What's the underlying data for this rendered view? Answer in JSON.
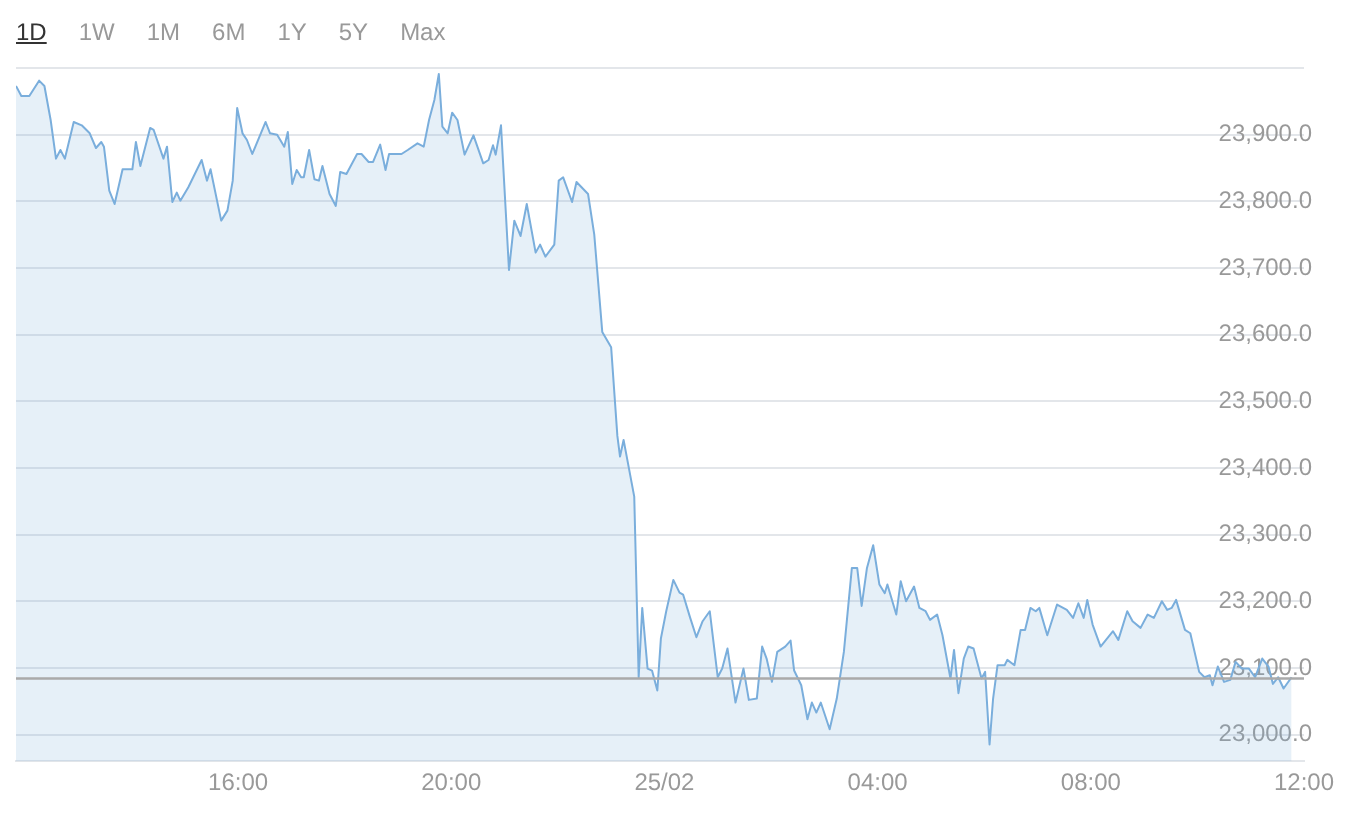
{
  "chart_data": {
    "type": "area",
    "annotations": [
      "1D",
      "1W",
      "1M",
      "6M",
      "1Y",
      "5Y",
      "Max"
    ],
    "x": [
      "--02-24T11:50",
      "--02-24T11:56",
      "--02-24T12:05",
      "--02-24T12:16",
      "--02-24T12:22",
      "--02-24T12:29",
      "--02-24T12:35",
      "--02-24T12:40",
      "--02-24T12:45",
      "--02-24T12:55",
      "--02-24T13:04",
      "--02-24T13:13",
      "--02-24T13:20",
      "--02-24T13:26",
      "--02-24T13:29",
      "--02-24T13:35",
      "--02-24T13:41",
      "--02-24T13:50",
      "--02-24T14:01",
      "--02-24T14:05",
      "--02-24T14:10",
      "--02-24T14:21",
      "--02-24T14:25",
      "--02-24T14:36",
      "--02-24T14:40",
      "--02-24T14:46",
      "--02-24T14:51",
      "--02-24T14:55",
      "--02-24T15:04",
      "--02-24T15:19",
      "--02-24T15:25",
      "--02-24T15:29",
      "--02-24T15:41",
      "--02-24T15:48",
      "--02-24T15:54",
      "--02-24T15:59",
      "--02-24T16:05",
      "--02-24T16:10",
      "--02-24T16:16",
      "--02-24T16:31",
      "--02-24T16:36",
      "--02-24T16:44",
      "--02-24T16:52",
      "--02-24T16:56",
      "--02-24T17:01",
      "--02-24T17:06",
      "--02-24T17:11",
      "--02-24T17:14",
      "--02-24T17:20",
      "--02-24T17:26",
      "--02-24T17:31",
      "--02-24T17:35",
      "--02-24T17:43",
      "--02-24T17:50",
      "--02-24T17:55",
      "--02-24T18:02",
      "--02-24T18:14",
      "--02-24T18:19",
      "--02-24T18:27",
      "--02-24T18:32",
      "--02-24T18:40",
      "--02-24T18:46",
      "--02-24T18:50",
      "--02-24T19:04",
      "--02-24T19:11",
      "--02-24T19:22",
      "--02-24T19:29",
      "--02-24T19:35",
      "--02-24T19:41",
      "--02-24T19:46",
      "--02-24T19:50",
      "--02-24T19:56",
      "--02-24T20:01",
      "--02-24T20:07",
      "--02-24T20:15",
      "--02-24T20:25",
      "--02-24T20:36",
      "--02-24T20:42",
      "--02-24T20:47",
      "--02-24T20:50",
      "--02-24T20:56",
      "--02-24T21:05",
      "--02-24T21:11",
      "--02-24T21:18",
      "--02-24T21:25",
      "--02-24T21:35",
      "--02-24T21:40",
      "--02-24T21:46",
      "--02-24T21:56",
      "--02-24T22:01",
      "--02-24T22:06",
      "--02-24T22:16",
      "--02-24T22:21",
      "--02-24T22:34",
      "--02-24T22:41",
      "--02-24T22:50",
      "--02-24T23:00",
      "--02-24T23:07",
      "--02-24T23:10",
      "--02-24T23:14",
      "--02-24T23:26",
      "--02-24T23:31",
      "--02-24T23:35",
      "--02-24T23:41",
      "--02-24T23:46",
      "--02-24T23:52",
      "--02-24T23:56",
      "--02-25T00:02",
      "--02-25T00:10",
      "--02-25T00:17",
      "--02-25T00:21",
      "--02-25T00:29",
      "--02-25T00:36",
      "--02-25T00:43",
      "--02-25T00:51",
      "--02-25T01:00",
      "--02-25T01:05",
      "--02-25T01:11",
      "--02-25T01:20",
      "--02-25T01:29",
      "--02-25T01:35",
      "--02-25T01:44",
      "--02-25T01:50",
      "--02-25T01:55",
      "--02-25T02:01",
      "--02-25T02:07",
      "--02-25T02:16",
      "--02-25T02:22",
      "--02-25T02:26",
      "--02-25T02:34",
      "--02-25T02:41",
      "--02-25T02:46",
      "--02-25T02:51",
      "--02-25T02:56",
      "--02-25T03:06",
      "--02-25T03:14",
      "--02-25T03:22",
      "--02-25T03:31",
      "--02-25T03:37",
      "--02-25T03:42",
      "--02-25T03:48",
      "--02-25T03:55",
      "--02-25T04:02",
      "--02-25T04:08",
      "--02-25T04:11",
      "--02-25T04:21",
      "--02-25T04:26",
      "--02-25T04:32",
      "--02-25T04:41",
      "--02-25T04:47",
      "--02-25T04:54",
      "--02-25T04:59",
      "--02-25T05:07",
      "--02-25T05:13",
      "--02-25T05:22",
      "--02-25T05:26",
      "--02-25T05:31",
      "--02-25T05:37",
      "--02-25T05:42",
      "--02-25T05:48",
      "--02-25T05:57",
      "--02-25T06:01",
      "--02-25T06:06",
      "--02-25T06:10",
      "--02-25T06:15",
      "--02-25T06:23",
      "--02-25T06:26",
      "--02-25T06:34",
      "--02-25T06:41",
      "--02-25T06:46",
      "--02-25T06:52",
      "--02-25T06:58",
      "--02-25T07:02",
      "--02-25T07:11",
      "--02-25T07:22",
      "--02-25T07:33",
      "--02-25T07:40",
      "--02-25T07:46",
      "--02-25T07:52",
      "--02-25T07:56",
      "--02-25T08:02",
      "--02-25T08:11",
      "--02-25T08:25",
      "--02-25T08:31",
      "--02-25T08:41",
      "--02-25T08:47",
      "--02-25T08:56",
      "--02-25T09:04",
      "--02-25T09:11",
      "--02-25T09:20",
      "--02-25T09:26",
      "--02-25T09:31",
      "--02-25T09:36",
      "--02-25T09:46",
      "--02-25T09:52",
      "--02-25T10:02",
      "--02-25T10:08",
      "--02-25T10:14",
      "--02-25T10:17",
      "--02-25T10:23",
      "--02-25T10:30",
      "--02-25T10:37",
      "--02-25T10:43",
      "--02-25T10:50",
      "--02-25T10:58",
      "--02-25T11:05",
      "--02-25T11:13",
      "--02-25T11:20",
      "--02-25T11:25",
      "--02-25T11:31",
      "--02-25T11:37",
      "--02-25T11:46"
    ],
    "series": [
      {
        "color": "#7aaedc",
        "values": [
          23973,
          23958,
          23958,
          23981,
          23973,
          23922,
          23864,
          23877,
          23864,
          23919,
          23914,
          23902,
          23880,
          23889,
          23882,
          23816,
          23796,
          23848,
          23848,
          23889,
          23853,
          23910,
          23907,
          23864,
          23882,
          23799,
          23813,
          23801,
          23821,
          23862,
          23831,
          23848,
          23771,
          23786,
          23831,
          23940,
          23902,
          23892,
          23871,
          23919,
          23902,
          23900,
          23882,
          23904,
          23826,
          23847,
          23836,
          23836,
          23877,
          23833,
          23831,
          23853,
          23811,
          23793,
          23844,
          23841,
          23871,
          23871,
          23859,
          23859,
          23885,
          23847,
          23871,
          23871,
          23877,
          23887,
          23882,
          23922,
          23952,
          23991,
          23912,
          23902,
          23933,
          23922,
          23870,
          23899,
          23857,
          23862,
          23884,
          23870,
          23914,
          23697,
          23771,
          23748,
          23796,
          23723,
          23735,
          23717,
          23735,
          23831,
          23836,
          23799,
          23829,
          23811,
          23750,
          23604,
          23581,
          23448,
          23417,
          23442,
          23357,
          23086,
          23190,
          23099,
          23096,
          23066,
          23144,
          23185,
          23232,
          23213,
          23210,
          23175,
          23146,
          23170,
          23185,
          23086,
          23099,
          23129,
          23048,
          23099,
          23052,
          23054,
          23132,
          23114,
          23079,
          23124,
          23132,
          23141,
          23096,
          23074,
          23023,
          23048,
          23033,
          23048,
          23008,
          23054,
          23124,
          23250,
          23250,
          23193,
          23250,
          23284,
          23225,
          23212,
          23225,
          23180,
          23230,
          23200,
          23222,
          23190,
          23185,
          23172,
          23180,
          23149,
          23084,
          23127,
          23062,
          23114,
          23132,
          23129,
          23084,
          23094,
          22985,
          23054,
          23104,
          23104,
          23112,
          23104,
          23157,
          23157,
          23190,
          23185,
          23190,
          23149,
          23195,
          23187,
          23175,
          23197,
          23175,
          23202,
          23165,
          23132,
          23155,
          23142,
          23185,
          23170,
          23160,
          23180,
          23175,
          23200,
          23187,
          23190,
          23202,
          23157,
          23152,
          23094,
          23086,
          23089,
          23074,
          23102,
          23079,
          23082,
          23109,
          23099,
          23099,
          23086,
          23114,
          23102,
          23076,
          23086,
          23069,
          23086
        ]
      }
    ],
    "xlim": [
      "--02-24T11:50",
      "--02-25T12:00"
    ],
    "xticks": [
      {
        "value": "--02-24T16:00",
        "label": "16:00"
      },
      {
        "value": "--02-24T20:00",
        "label": "20:00"
      },
      {
        "value": "--02-25T00:00",
        "label": "25/02"
      },
      {
        "value": "--02-25T04:00",
        "label": "04:00"
      },
      {
        "value": "--02-25T08:00",
        "label": "08:00"
      },
      {
        "value": "--02-25T12:00",
        "label": "12:00"
      }
    ],
    "ylim": [
      22960,
      24000
    ],
    "yticks": [
      {
        "value": 23000,
        "label": "23,000.0"
      },
      {
        "value": 23100,
        "label": "23,100.0"
      },
      {
        "value": 23200,
        "label": "23,200.0"
      },
      {
        "value": 23300,
        "label": "23,300.0"
      },
      {
        "value": 23400,
        "label": "23,400.0"
      },
      {
        "value": 23500,
        "label": "23,500.0"
      },
      {
        "value": 23600,
        "label": "23,600.0"
      },
      {
        "value": 23700,
        "label": "23,700.0"
      },
      {
        "value": 23800,
        "label": "23,800.0"
      },
      {
        "value": 23900,
        "label": "23,900.0"
      },
      {
        "value": 24000,
        "label": null
      }
    ],
    "ref_lines": [
      {
        "axis": "y",
        "value": 23084,
        "color": "#aaaaaa"
      }
    ],
    "grid": "y",
    "legend": false
  }
}
